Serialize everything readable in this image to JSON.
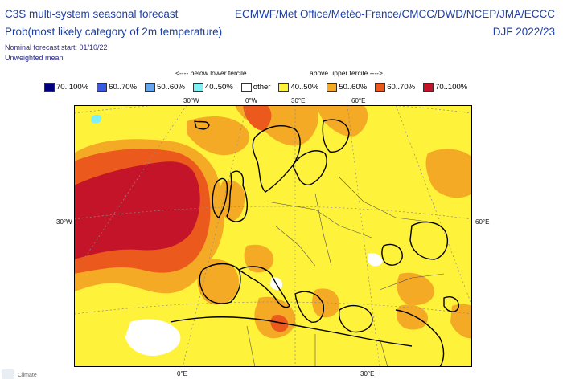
{
  "header": {
    "title_line1": "C3S multi-system seasonal forecast",
    "title_line2": "Prob(most likely category of 2m temperature)",
    "forecast_start": "Nominal forecast start: 01/10/22",
    "mean_type": "Unweighted mean",
    "centres": "ECMWF/Met Office/Météo-France/CMCC/DWD/NCEP/JMA/ECCC",
    "season": "DJF 2022/23"
  },
  "legend": {
    "below_label": "<---- below lower tercile",
    "above_label": "above upper tercile ---->",
    "items": [
      {
        "label": "70..100%",
        "color": "#00007e"
      },
      {
        "label": "60..70%",
        "color": "#3a5be0"
      },
      {
        "label": "50..60%",
        "color": "#66a6ee"
      },
      {
        "label": "40..50%",
        "color": "#7ef0f4"
      },
      {
        "label": "other",
        "color": "#ffffff"
      },
      {
        "label": "40..50%",
        "color": "#fff23a"
      },
      {
        "label": "50..60%",
        "color": "#f5aa26"
      },
      {
        "label": "60..70%",
        "color": "#eb5a1c"
      },
      {
        "label": "70..100%",
        "color": "#c4142a"
      }
    ]
  },
  "map": {
    "top_labels": [
      "30°W",
      "0°W",
      "30°E",
      "60°E"
    ],
    "left_label": "30°W",
    "right_label": "60°E",
    "bottom_labels": [
      "0°E",
      "30°E"
    ],
    "footer_logo": "Climate"
  }
}
